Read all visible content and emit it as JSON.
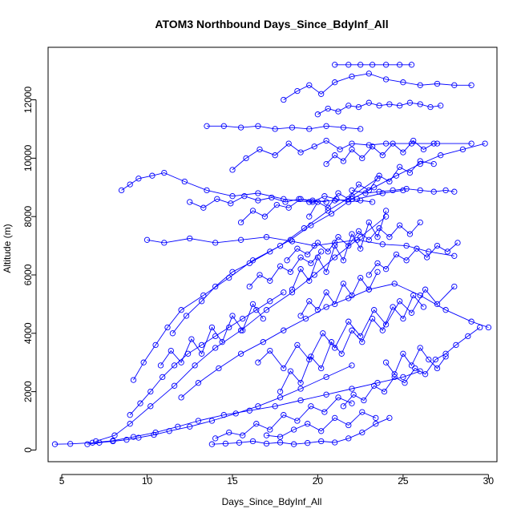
{
  "chart_data": {
    "type": "scatter",
    "title": "ATOM3 Northbound Days_Since_BdyInf_All",
    "xlabel": "Days_Since_BdyInf_All",
    "ylabel": "Altitude (m)",
    "xlim": [
      4.2,
      30.5
    ],
    "ylim": [
      -400,
      13800
    ],
    "x_ticks": [
      5,
      10,
      15,
      20,
      25,
      30
    ],
    "y_ticks": [
      0,
      2000,
      4000,
      6000,
      8000,
      10000,
      12000
    ],
    "series_color": "#0000ff",
    "marker": "open-circle",
    "connected": true,
    "grid": false,
    "legend": "none",
    "series": [
      {
        "x": [
          4.6,
          5.5,
          6.8,
          8.0,
          9.2,
          10.5,
          11.8,
          13.0,
          14.5,
          16.0,
          17.5,
          19.0,
          20.5,
          22.0,
          23.5,
          25.0,
          26.0
        ],
        "y": [
          200,
          210,
          250,
          320,
          450,
          600,
          800,
          1000,
          1200,
          1350,
          1500,
          1700,
          1900,
          2100,
          2300,
          2500,
          2700
        ]
      },
      {
        "x": [
          7.0,
          8.1,
          9.0,
          10.2,
          11.6,
          12.8,
          14.0,
          15.5,
          17.0,
          18.5,
          19.8,
          21.0,
          22.5,
          24.0
        ],
        "y": [
          300,
          500,
          900,
          1500,
          2200,
          2900,
          3500,
          4100,
          4800,
          5400,
          6000,
          6600,
          7300,
          8000
        ]
      },
      {
        "x": [
          8.5,
          9.0,
          9.5,
          10.3,
          11.0,
          12.2,
          13.5,
          15.0,
          16.5,
          18.0,
          19.5,
          21.0,
          22.3,
          23.8,
          25.0
        ],
        "y": [
          8900,
          9100,
          9300,
          9400,
          9500,
          9200,
          8900,
          8700,
          8800,
          8600,
          8500,
          8550,
          8600,
          8800,
          8900
        ]
      },
      {
        "x": [
          9.2,
          9.8,
          10.5,
          11.2,
          12.0,
          13.3,
          14.8,
          16.2,
          17.8,
          19.2,
          20.6,
          22.0,
          23.5
        ],
        "y": [
          2400,
          3000,
          3600,
          4200,
          4800,
          5300,
          5900,
          6500,
          7000,
          7600,
          8200,
          8700,
          9300
        ]
      },
      {
        "x": [
          13.5,
          14.5,
          15.5,
          16.5,
          17.5,
          18.5,
          19.5,
          20.5,
          21.5,
          22.5
        ],
        "y": [
          11100,
          11100,
          11050,
          11100,
          11000,
          11050,
          11000,
          11100,
          11050,
          11000
        ]
      },
      {
        "x": [
          18.0,
          18.8,
          19.5,
          20.2,
          21.0,
          22.0,
          23.0,
          24.0,
          25.0,
          26.0,
          27.0,
          28.0,
          29.0
        ],
        "y": [
          12000,
          12300,
          12500,
          12200,
          12600,
          12800,
          12900,
          12700,
          12600,
          12500,
          12550,
          12500,
          12500
        ]
      },
      {
        "x": [
          21.0,
          21.8,
          22.5,
          23.2,
          24.0,
          24.8,
          25.5
        ],
        "y": [
          13200,
          13200,
          13200,
          13200,
          13200,
          13200,
          13200
        ]
      },
      {
        "x": [
          12.0,
          13.0,
          14.2,
          15.5,
          16.8,
          18.0,
          19.3,
          20.5,
          21.8,
          23.0,
          24.5,
          26.0,
          27.5,
          29.0,
          30.0
        ],
        "y": [
          1800,
          2300,
          2800,
          3300,
          3700,
          4100,
          4500,
          4900,
          5200,
          5500,
          5700,
          5300,
          4800,
          4400,
          4200
        ]
      },
      {
        "x": [
          15.0,
          15.8,
          16.6,
          17.5,
          18.3,
          19.0,
          19.8,
          20.5,
          21.3,
          22.0,
          23.0,
          24.0,
          25.5,
          27.0,
          29.0
        ],
        "y": [
          9600,
          10000,
          10300,
          10100,
          10500,
          10200,
          10400,
          10600,
          10300,
          10500,
          10450,
          10500,
          10500,
          10500,
          10500
        ]
      },
      {
        "x": [
          10.0,
          11.0,
          12.5,
          14.0,
          15.5,
          17.0,
          18.5,
          19.8,
          21.0,
          22.3,
          23.8,
          25.2,
          26.5,
          28.0
        ],
        "y": [
          7200,
          7100,
          7250,
          7100,
          7200,
          7300,
          7150,
          7000,
          7100,
          7200,
          7050,
          7000,
          6800,
          6650
        ]
      },
      {
        "x": [
          6.5,
          7.2,
          8.0,
          8.8,
          9.5,
          10.4,
          11.3,
          12.5,
          13.8,
          15.2,
          16.5,
          17.8,
          19.0,
          20.5,
          22.0
        ],
        "y": [
          200,
          250,
          300,
          350,
          420,
          520,
          650,
          800,
          1000,
          1250,
          1500,
          1800,
          2100,
          2500,
          2900
        ]
      },
      {
        "x": [
          11.5,
          12.3,
          13.2,
          14.0,
          15.0,
          16.0,
          17.2,
          18.4,
          19.6,
          20.8,
          22.0,
          23.3,
          24.6,
          26.0,
          27.2,
          28.5,
          29.8
        ],
        "y": [
          4000,
          4600,
          5100,
          5600,
          6100,
          6400,
          6800,
          7200,
          7700,
          8100,
          8600,
          9000,
          9400,
          9800,
          10100,
          10300,
          10500
        ]
      },
      {
        "x": [
          16.5,
          17.2,
          18.0,
          18.8,
          19.5,
          20.3,
          21.0,
          21.8,
          22.5,
          23.3,
          24.0,
          24.8,
          25.5,
          26.3,
          27.0,
          28.0
        ],
        "y": [
          3000,
          3400,
          2800,
          3600,
          3100,
          4000,
          3500,
          4400,
          3900,
          4800,
          4300,
          5100,
          4700,
          5500,
          5000,
          5600
        ]
      },
      {
        "x": [
          18.5,
          19.0,
          19.5,
          20.0,
          20.5,
          21.0,
          21.5,
          22.0,
          22.5,
          23.0,
          23.5,
          24.0
        ],
        "y": [
          5500,
          6200,
          5800,
          6600,
          6100,
          7000,
          6500,
          7400,
          6900,
          7800,
          7300,
          8200
        ]
      },
      {
        "x": [
          19.5,
          20.0,
          20.6,
          21.2,
          21.8,
          22.4,
          23.0,
          23.6,
          24.2,
          24.8,
          25.4,
          26.0,
          26.8
        ],
        "y": [
          8000,
          8500,
          8300,
          8800,
          8600,
          9100,
          8900,
          9400,
          9200,
          9700,
          9500,
          9900,
          9800
        ]
      },
      {
        "x": [
          14.0,
          14.8,
          15.6,
          16.4,
          17.2,
          18.0,
          18.8,
          19.6,
          20.4,
          21.2,
          22.0
        ],
        "y": [
          400,
          600,
          500,
          900,
          700,
          1200,
          1000,
          1500,
          1300,
          1800,
          1600
        ]
      },
      {
        "x": [
          17.0,
          17.8,
          18.6,
          19.4,
          20.2,
          21.0,
          21.8,
          22.6,
          23.4
        ],
        "y": [
          500,
          450,
          700,
          900,
          650,
          1100,
          850,
          1300,
          1100
        ]
      },
      {
        "x": [
          20.0,
          20.6,
          21.2,
          21.8,
          22.4,
          23.0,
          23.6,
          24.2,
          24.8,
          25.4,
          26.0,
          26.6,
          27.2
        ],
        "y": [
          11500,
          11700,
          11600,
          11800,
          11750,
          11900,
          11800,
          11850,
          11800,
          11900,
          11850,
          11750,
          11800
        ]
      },
      {
        "x": [
          22.0,
          22.8,
          23.6,
          24.4,
          25.2,
          26.0,
          26.8,
          27.5,
          28.0
        ],
        "y": [
          8900,
          8800,
          8850,
          8900,
          8950,
          8900,
          8850,
          8900,
          8850
        ]
      },
      {
        "x": [
          9.0,
          9.6,
          10.2,
          10.9,
          11.6,
          12.4,
          13.2,
          14.0,
          14.8,
          15.6,
          16.4,
          17.2,
          18.0
        ],
        "y": [
          1200,
          1600,
          2000,
          2500,
          2900,
          3300,
          3600,
          3900,
          4200,
          4500,
          4800,
          5100,
          5400
        ]
      },
      {
        "x": [
          17.8,
          18.4,
          19.0,
          19.6,
          20.2,
          20.8,
          21.4,
          22.0,
          22.6,
          23.2,
          23.8,
          24.4,
          25.0,
          25.6,
          26.2
        ],
        "y": [
          2000,
          2700,
          2300,
          3200,
          2800,
          3700,
          3300,
          4100,
          3700,
          4500,
          4100,
          4900,
          4500,
          5300,
          4900
        ]
      },
      {
        "x": [
          15.5,
          16.2,
          16.9,
          17.6,
          18.3,
          19.0,
          19.7,
          20.4,
          21.1,
          21.8,
          22.5,
          23.2
        ],
        "y": [
          7800,
          8200,
          8000,
          8400,
          8300,
          8600,
          8500,
          8700,
          8600,
          8500,
          8550,
          8500
        ]
      },
      {
        "x": [
          18.2,
          18.8,
          19.4,
          20.0,
          20.6,
          21.2,
          21.8,
          22.4,
          23.0,
          23.6,
          24.2,
          24.8,
          25.4,
          26.0
        ],
        "y": [
          6500,
          6900,
          6700,
          7100,
          6800,
          7300,
          7000,
          7500,
          7200,
          7600,
          7300,
          7700,
          7400,
          7800
        ]
      },
      {
        "x": [
          23.0,
          23.5,
          24.0,
          24.6,
          25.2,
          25.8,
          26.4,
          27.0,
          27.6,
          28.2
        ],
        "y": [
          6000,
          6400,
          6200,
          6700,
          6500,
          6900,
          6600,
          7000,
          6800,
          7100
        ]
      },
      {
        "x": [
          12.5,
          13.3,
          14.1,
          14.9,
          15.7,
          16.5,
          17.3,
          18.1,
          18.9,
          19.7,
          20.5
        ],
        "y": [
          8500,
          8300,
          8600,
          8450,
          8700,
          8550,
          8650,
          8500,
          8600,
          8550,
          8500
        ]
      },
      {
        "x": [
          20.5,
          21.0,
          21.5,
          22.0,
          22.6,
          23.2,
          23.8,
          24.4,
          25.0,
          25.6,
          26.2,
          26.8
        ],
        "y": [
          9800,
          10100,
          9900,
          10300,
          10000,
          10400,
          10100,
          10500,
          10200,
          10600,
          10300,
          10500
        ]
      },
      {
        "x": [
          24.0,
          24.5,
          25.0,
          25.5,
          26.0,
          26.5,
          27.0,
          27.5
        ],
        "y": [
          3000,
          2600,
          3300,
          2900,
          3500,
          3100,
          2800,
          3200
        ]
      },
      {
        "x": [
          13.8,
          14.6,
          15.4,
          16.2,
          17.0,
          17.8,
          18.6,
          19.4,
          20.2,
          21.0,
          21.8,
          22.6,
          23.4,
          24.2
        ],
        "y": [
          200,
          220,
          250,
          300,
          220,
          260,
          200,
          240,
          300,
          260,
          400,
          600,
          900,
          1100
        ]
      },
      {
        "x": [
          10.8,
          11.4,
          12.0,
          12.6,
          13.2,
          13.8,
          14.4,
          15.0,
          15.6,
          16.2,
          16.8
        ],
        "y": [
          2900,
          3400,
          3000,
          3800,
          3300,
          4200,
          3700,
          4600,
          4100,
          5000,
          4500
        ]
      },
      {
        "x": [
          19.0,
          19.5,
          20.0,
          20.5,
          21.0,
          21.5,
          22.0,
          22.5,
          23.0,
          23.5
        ],
        "y": [
          4600,
          5100,
          4800,
          5400,
          5000,
          5700,
          5300,
          5900,
          5500,
          6100
        ]
      },
      {
        "x": [
          16.0,
          16.6,
          17.2,
          17.8,
          18.4,
          19.0,
          19.6,
          20.2
        ],
        "y": [
          5600,
          6000,
          5800,
          6300,
          6100,
          6600,
          6400,
          6800
        ]
      },
      {
        "x": [
          21.5,
          22.1,
          22.7,
          23.3,
          23.9,
          24.5,
          25.1,
          25.7,
          26.3,
          26.9,
          27.5,
          28.1,
          28.8,
          29.5
        ],
        "y": [
          1500,
          1900,
          1700,
          2200,
          2000,
          2500,
          2300,
          2800,
          2600,
          3100,
          3300,
          3600,
          3900,
          4200
        ]
      }
    ]
  }
}
